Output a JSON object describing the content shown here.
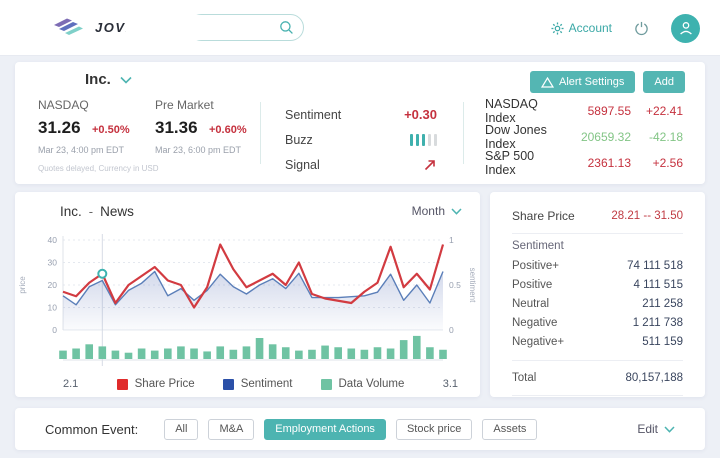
{
  "colors": {
    "accent_teal": "#4db4b1",
    "up_red": "#c5313e",
    "down_green": "#83c586",
    "share_price_line": "#d23b41",
    "sentiment_line": "#5b7fb9",
    "volume_bar": "#6fc3a3"
  },
  "header": {
    "logo_text": "JOVE BIRD",
    "search_placeholder": "",
    "account_label": "Account"
  },
  "company": {
    "name": "Inc.",
    "exchange": {
      "label": "NASDAQ",
      "price": "31.26",
      "change": "+0.50%",
      "time": "Mar 23, 4:00 pm  EDT",
      "note": "Quotes delayed, Currency in USD"
    },
    "pre_market": {
      "label": "Pre Market",
      "price": "31.36",
      "change": "+0.60%",
      "time": "Mar 23, 6:00 pm  EDT"
    },
    "metrics": {
      "sentiment_label": "Sentiment",
      "sentiment_value": "+0.30",
      "buzz_label": "Buzz",
      "buzz": {
        "filled": 3,
        "total": 5
      },
      "signal_label": "Signal",
      "signal_direction": "up"
    },
    "buttons": {
      "alert": "Alert Settings",
      "add": "Add"
    },
    "indices": [
      {
        "label": "NASDAQ Index",
        "value": "5897.55",
        "change": "+22.41",
        "direction": "up"
      },
      {
        "label": "Dow Jones Index",
        "value": "20659.32",
        "change": "-42.18",
        "direction": "down"
      },
      {
        "label": "S&P 500 Index",
        "value": "2361.13",
        "change": "+2.56",
        "direction": "up"
      }
    ]
  },
  "news": {
    "company": "Inc.",
    "separator": "-",
    "label": "News",
    "period": "Month"
  },
  "chart_data": {
    "type": "line+bar",
    "title": "Inc. - News",
    "x_start_label": "2.1",
    "x_end_label": "3.1",
    "left_axis": {
      "label": "price",
      "ticks": [
        0,
        10,
        20,
        30,
        40
      ],
      "range": [
        0,
        40
      ]
    },
    "right_axis": {
      "label": "sentiment",
      "ticks": [
        0,
        0.5,
        1
      ],
      "range": [
        0,
        1
      ]
    },
    "grid": true,
    "legend_position": "bottom",
    "legend": [
      {
        "name": "Share Price",
        "color": "#e02b2b"
      },
      {
        "name": "Sentiment",
        "color": "#2b50a8"
      },
      {
        "name": "Data Volume",
        "color": "#6fc3a3"
      }
    ],
    "highlight_index": 3,
    "series": [
      {
        "name": "Share Price",
        "type": "line",
        "axis": "left",
        "color": "#d23b41",
        "values": [
          17,
          15,
          21,
          25,
          12,
          20,
          24,
          28,
          22,
          20,
          10,
          19,
          38,
          27,
          19,
          22,
          25,
          20,
          30,
          16,
          14,
          13,
          12,
          17,
          21,
          37,
          19,
          25,
          18,
          38
        ]
      },
      {
        "name": "Sentiment",
        "type": "line",
        "axis": "right",
        "color": "#5b7fb9",
        "values": [
          0.38,
          0.28,
          0.48,
          0.55,
          0.28,
          0.44,
          0.52,
          0.65,
          0.38,
          0.46,
          0.33,
          0.44,
          0.62,
          0.48,
          0.4,
          0.5,
          0.57,
          0.46,
          0.63,
          0.36,
          0.36,
          0.36,
          0.37,
          0.38,
          0.42,
          0.62,
          0.33,
          0.5,
          0.3,
          0.65
        ]
      },
      {
        "name": "Data Volume",
        "type": "bar",
        "axis": "volume",
        "color": "#6fc3a3",
        "values": [
          2,
          2.5,
          3.5,
          3,
          2,
          1.5,
          2.5,
          2,
          2.5,
          3,
          2.5,
          1.8,
          3,
          2.2,
          3,
          5,
          3.5,
          2.8,
          2,
          2.2,
          3.2,
          2.8,
          2.5,
          2.2,
          2.8,
          2.5,
          4.5,
          5.5,
          2.8,
          2.2
        ]
      }
    ]
  },
  "side_panel": {
    "share_price_label": "Share Price",
    "share_price_range": "28.21 -- 31.50",
    "sentiment_label": "Sentiment",
    "rows": [
      {
        "label": "Positive+",
        "value": "74 111 518"
      },
      {
        "label": "Positive",
        "value": "4 111 515"
      },
      {
        "label": "Neutral",
        "value": "211 258"
      },
      {
        "label": "Negative",
        "value": "1 211 738"
      },
      {
        "label": "Negative+",
        "value": "511 159"
      }
    ],
    "total_label": "Total",
    "total_value": "80,157,188"
  },
  "common_event": {
    "label": "Common Event:",
    "filters": [
      {
        "label": "All",
        "active": false
      },
      {
        "label": "M&A",
        "active": false
      },
      {
        "label": "Employment Actions",
        "active": true
      },
      {
        "label": "Stock price",
        "active": false
      },
      {
        "label": "Assets",
        "active": false
      }
    ],
    "edit_label": "Edit"
  }
}
